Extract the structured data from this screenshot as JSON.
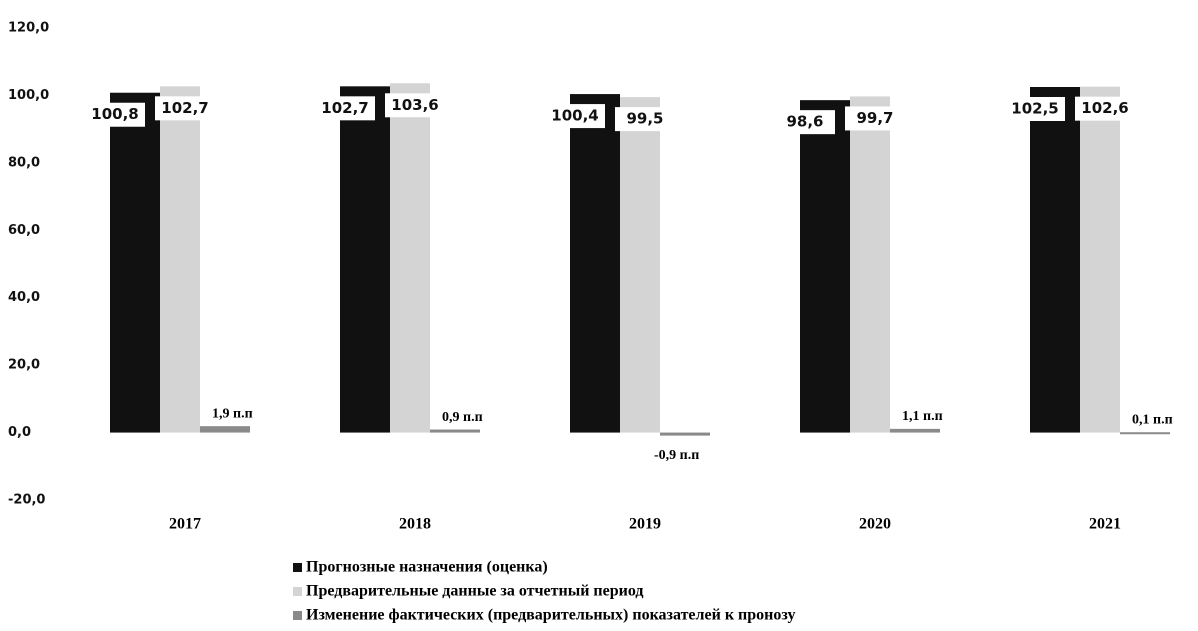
{
  "chart_data": {
    "type": "bar",
    "categories": [
      "2017",
      "2018",
      "2019",
      "2020",
      "2021"
    ],
    "series": [
      {
        "name": "Прогнозные назначения (оценка)",
        "color": "#111111",
        "values": [
          100.8,
          102.7,
          100.4,
          98.6,
          102.5
        ],
        "value_labels": [
          "100,8",
          "102,7",
          "100,4",
          "98,6",
          "102,5"
        ]
      },
      {
        "name": "Предварительные данные за отчетный период",
        "color": "#d4d4d4",
        "values": [
          102.7,
          103.6,
          99.5,
          99.7,
          102.6
        ],
        "value_labels": [
          "102,7",
          "103,6",
          "99,5",
          "99,7",
          "102,6"
        ]
      },
      {
        "name": "Изменение фактических (предварительных) показателей к пронозу",
        "color": "#8a8a8a",
        "values": [
          1.9,
          0.9,
          -0.9,
          1.1,
          0.1
        ],
        "value_labels": [
          "1,9 п.п",
          "0,9 п.п",
          "-0,9 п.п",
          "1,1 п.п",
          "0,1 п.п"
        ]
      }
    ],
    "ylim": [
      -20,
      120
    ],
    "yticks": [
      {
        "value": -20,
        "label": "-20,0"
      },
      {
        "value": 0,
        "label": "0,0"
      },
      {
        "value": 20,
        "label": "20,0"
      },
      {
        "value": 40,
        "label": "40,0"
      },
      {
        "value": 60,
        "label": "60,0"
      },
      {
        "value": 80,
        "label": "80,0"
      },
      {
        "value": 100,
        "label": "100,0"
      },
      {
        "value": 120,
        "label": "120,0"
      }
    ],
    "grid": false
  }
}
